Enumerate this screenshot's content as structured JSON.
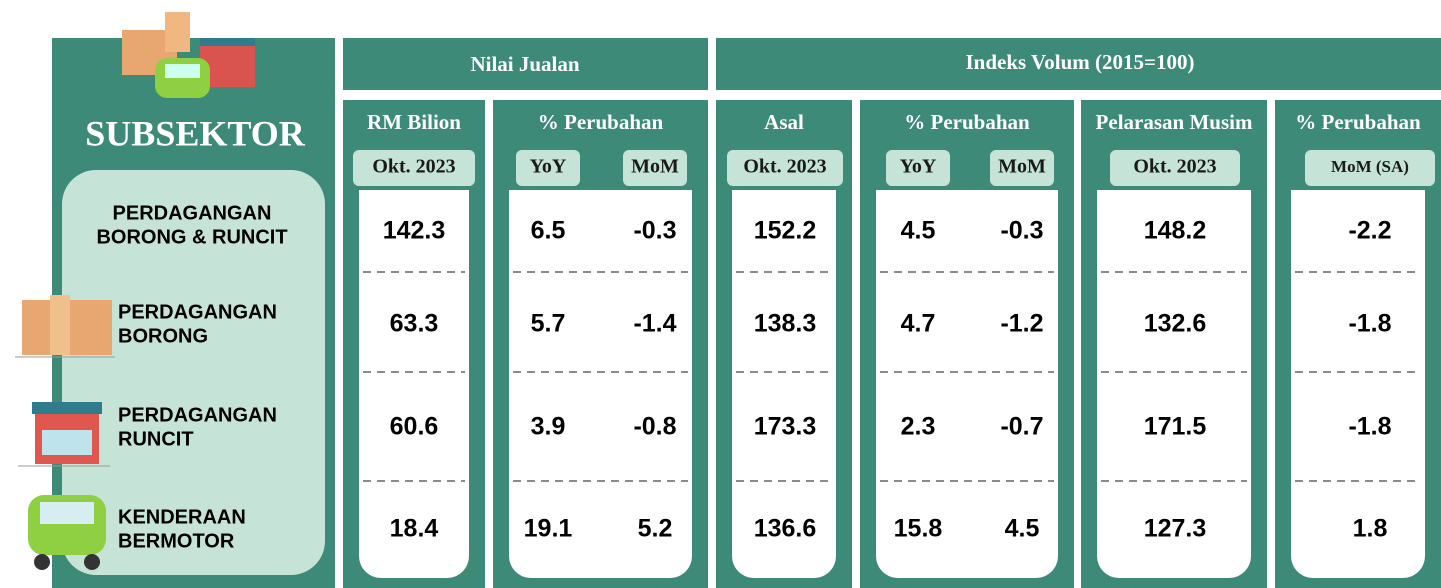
{
  "header": {
    "subsektor": "SUBSEKTOR",
    "nilai_jualan": "Nilai Jualan",
    "indeks_volum": "Indeks Volum (2015=100)"
  },
  "columns": [
    {
      "title": "RM Bilion",
      "sub": [
        "Okt. 2023"
      ]
    },
    {
      "title": "% Perubahan",
      "sub": [
        "YoY",
        "MoM"
      ]
    },
    {
      "title": "Asal",
      "sub": [
        "Okt. 2023"
      ]
    },
    {
      "title": "% Perubahan",
      "sub": [
        "YoY",
        "MoM"
      ]
    },
    {
      "title": "Pelarasan Musim",
      "sub": [
        "Okt. 2023"
      ]
    },
    {
      "title": "% Perubahan",
      "sub": [
        "MoM (SA)"
      ]
    }
  ],
  "rows": [
    {
      "label": [
        "PERDAGANGAN",
        "BORONG & RUNCIT"
      ],
      "values": [
        142.3,
        6.5,
        -0.3,
        152.2,
        4.5,
        -0.3,
        148.2,
        -2.2
      ]
    },
    {
      "label": [
        "PERDAGANGAN",
        "BORONG"
      ],
      "values": [
        63.3,
        5.7,
        -1.4,
        138.3,
        4.7,
        -1.2,
        132.6,
        -1.8
      ]
    },
    {
      "label": [
        "PERDAGANGAN",
        "RUNCIT"
      ],
      "values": [
        60.6,
        3.9,
        -0.8,
        173.3,
        2.3,
        -0.7,
        171.5,
        -1.8
      ]
    },
    {
      "label": [
        "KENDERAAN",
        "BERMOTOR"
      ],
      "values": [
        18.4,
        19.1,
        5.2,
        136.6,
        15.8,
        4.5,
        127.3,
        1.8
      ]
    }
  ]
}
